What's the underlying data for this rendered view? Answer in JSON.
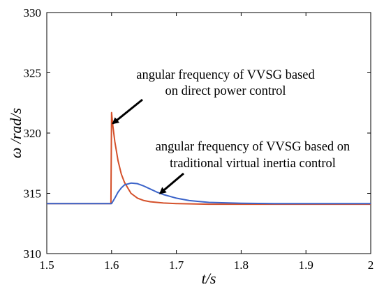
{
  "chart_data": {
    "type": "line",
    "xlabel": "t/s",
    "ylabel": "ω /rad/s",
    "xlim": [
      1.5,
      2.0
    ],
    "ylim": [
      310,
      330
    ],
    "xticks": [
      "1.5",
      "1.6",
      "1.7",
      "1.8",
      "1.9",
      "2"
    ],
    "yticks": [
      "310",
      "315",
      "320",
      "325",
      "330"
    ],
    "grid": false,
    "series": [
      {
        "color": "#d4502a",
        "x": [
          1.5,
          1.599,
          1.6,
          1.602,
          1.605,
          1.61,
          1.615,
          1.62,
          1.63,
          1.64,
          1.65,
          1.66,
          1.68,
          1.7,
          1.75,
          2.0
        ],
        "y": [
          314.15,
          314.15,
          321.7,
          320.6,
          319.3,
          317.7,
          316.6,
          315.9,
          315.0,
          314.6,
          314.4,
          314.3,
          314.2,
          314.15,
          314.1,
          314.1
        ]
      },
      {
        "color": "#3b63c9",
        "x": [
          1.5,
          1.6,
          1.605,
          1.61,
          1.615,
          1.62,
          1.63,
          1.64,
          1.65,
          1.66,
          1.67,
          1.68,
          1.7,
          1.72,
          1.75,
          1.8,
          1.85,
          1.9,
          2.0
        ],
        "y": [
          314.15,
          314.15,
          314.6,
          315.1,
          315.45,
          315.7,
          315.85,
          315.8,
          315.6,
          315.35,
          315.1,
          314.9,
          314.6,
          314.4,
          314.25,
          314.18,
          314.15,
          314.15,
          314.15
        ]
      }
    ],
    "annotations": [
      {
        "lines": [
          "angular frequency of VVSG based",
          "on direct power control"
        ],
        "arrow_to": [
          1.602,
          320.8
        ]
      },
      {
        "lines": [
          "angular frequency of VVSG based on",
          "traditional virtual inertia control"
        ],
        "arrow_to": [
          1.675,
          315.0
        ]
      }
    ]
  }
}
